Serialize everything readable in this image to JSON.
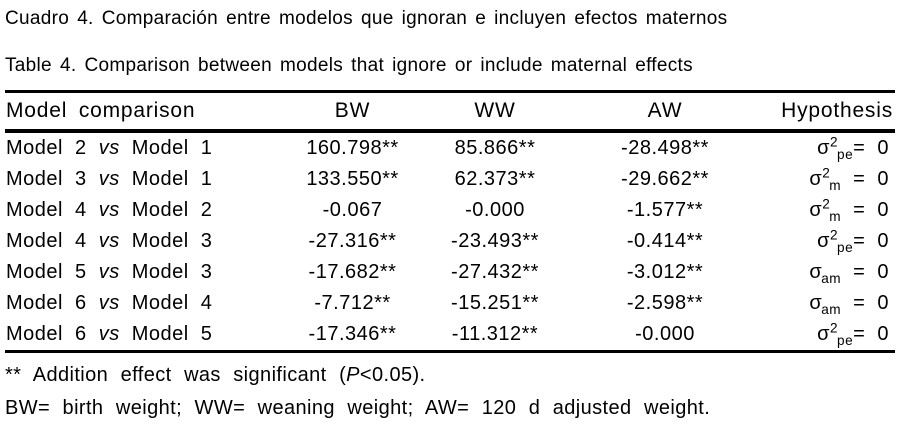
{
  "captions": {
    "spanish": "Cuadro 4. Comparación entre modelos que ignoran e incluyen efectos maternos",
    "english": "Table 4. Comparison between models that ignore or include maternal effects"
  },
  "table": {
    "headers": [
      "Model comparison",
      "BW",
      "WW",
      "AW",
      "Hypothesis"
    ],
    "rows": [
      {
        "model_a": "Model 2",
        "vs": "vs",
        "model_b": "Model 1",
        "bw": "160.798**",
        "ww": "85.866**",
        "aw": "-28.498**",
        "hypothesis": {
          "sigma": "σ",
          "sup": "2",
          "sub": "pe",
          "eq": "= 0"
        }
      },
      {
        "model_a": "Model 3",
        "vs": "vs",
        "model_b": "Model 1",
        "bw": "133.550**",
        "ww": "62.373**",
        "aw": "-29.662**",
        "hypothesis": {
          "sigma": "σ",
          "sup": "2",
          "sub": "m",
          "eq": " = 0"
        }
      },
      {
        "model_a": "Model 4",
        "vs": "vs",
        "model_b": "Model 2",
        "bw": "-0.067",
        "ww": "-0.000",
        "aw": "-1.577**",
        "hypothesis": {
          "sigma": "σ",
          "sup": "2",
          "sub": "m",
          "eq": " = 0"
        }
      },
      {
        "model_a": "Model 4",
        "vs": "vs",
        "model_b": "Model 3",
        "bw": "-27.316**",
        "ww": "-23.493**",
        "aw": "-0.414**",
        "hypothesis": {
          "sigma": "σ",
          "sup": "2",
          "sub": "pe",
          "eq": "= 0"
        }
      },
      {
        "model_a": "Model 5",
        "vs": "vs",
        "model_b": "Model 3",
        "bw": "-17.682**",
        "ww": "-27.432**",
        "aw": "-3.012**",
        "hypothesis": {
          "sigma": "σ",
          "sup": "",
          "sub": "am",
          "eq": " = 0"
        }
      },
      {
        "model_a": "Model 6",
        "vs": "vs",
        "model_b": "Model 4",
        "bw": "-7.712**",
        "ww": "-15.251**",
        "aw": "-2.598**",
        "hypothesis": {
          "sigma": "σ",
          "sup": "",
          "sub": "am",
          "eq": " = 0"
        }
      },
      {
        "model_a": "Model 6",
        "vs": "vs",
        "model_b": "Model 5",
        "bw": "-17.346**",
        "ww": "-11.312**",
        "aw": "-0.000",
        "hypothesis": {
          "sigma": "σ",
          "sup": "2",
          "sub": "pe",
          "eq": "= 0"
        }
      }
    ]
  },
  "footnotes": {
    "significance": {
      "pre": "** Addition effect was significant (",
      "italic_p": "P",
      "post": "<0.05)."
    },
    "abbreviations": "BW= birth weight; WW= weaning weight; AW= 120 d adjusted weight."
  },
  "colors": {
    "text": "#000000",
    "background": "#ffffff",
    "rule": "#000000"
  }
}
